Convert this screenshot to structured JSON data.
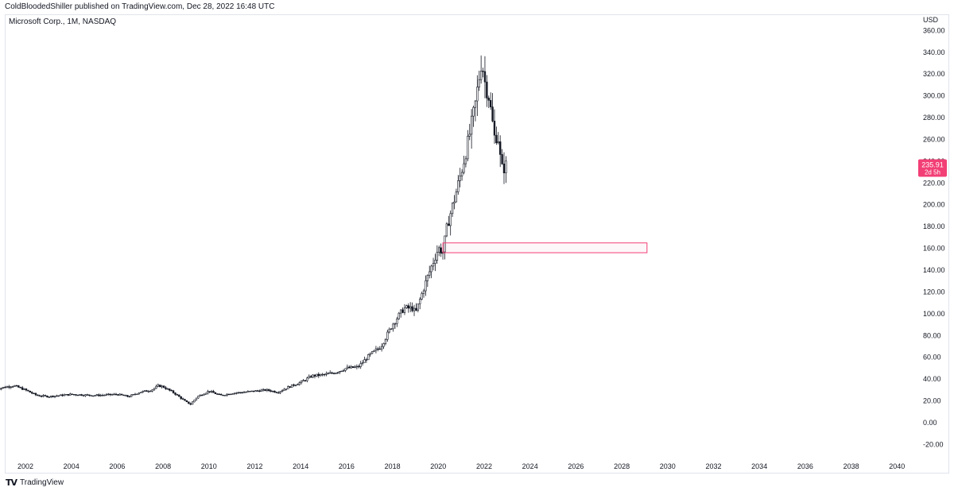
{
  "header": {
    "published_by": "ColdBloodedShiller published on TradingView.com, Dec 28, 2022 16:48 UTC"
  },
  "symbol": {
    "title": "Microsoft Corp., 1M, NASDAQ"
  },
  "price_label": {
    "value": "235.91",
    "countdown": "2d 5h",
    "color": "#f23f75"
  },
  "footer": {
    "brand": "TradingView",
    "brand_icon": "tradingview-logo-icon"
  },
  "chart_data": {
    "type": "candlestick",
    "currency": "USD",
    "interval": "1M",
    "ylim": [
      -28,
      368
    ],
    "xlim": [
      2000.7,
      2040.6
    ],
    "y_ticks": [
      -20,
      0,
      20,
      40,
      60,
      80,
      100,
      120,
      140,
      160,
      180,
      200,
      220,
      240,
      260,
      280,
      300,
      320,
      340,
      360
    ],
    "x_ticks": [
      2002,
      2004,
      2006,
      2008,
      2010,
      2012,
      2014,
      2016,
      2018,
      2020,
      2022,
      2024,
      2026,
      2028,
      2030,
      2032,
      2034,
      2036,
      2038,
      2040
    ],
    "close_anchors": [
      [
        2000.7,
        31
      ],
      [
        2001.2,
        33
      ],
      [
        2001.5,
        34
      ],
      [
        2002.0,
        30
      ],
      [
        2002.5,
        25
      ],
      [
        2003.0,
        24
      ],
      [
        2004.0,
        26
      ],
      [
        2005.0,
        25
      ],
      [
        2006.0,
        26
      ],
      [
        2006.5,
        24
      ],
      [
        2007.0,
        28
      ],
      [
        2007.5,
        30
      ],
      [
        2007.8,
        34
      ],
      [
        2008.0,
        33
      ],
      [
        2008.5,
        27
      ],
      [
        2009.0,
        19
      ],
      [
        2009.2,
        17
      ],
      [
        2009.5,
        24
      ],
      [
        2010.0,
        29
      ],
      [
        2010.5,
        25
      ],
      [
        2011.0,
        27
      ],
      [
        2012.0,
        29
      ],
      [
        2012.5,
        30
      ],
      [
        2013.0,
        28
      ],
      [
        2013.5,
        33
      ],
      [
        2014.0,
        37
      ],
      [
        2014.5,
        43
      ],
      [
        2015.0,
        44
      ],
      [
        2015.5,
        46
      ],
      [
        2016.0,
        50
      ],
      [
        2016.5,
        51
      ],
      [
        2017.0,
        62
      ],
      [
        2017.5,
        70
      ],
      [
        2018.0,
        90
      ],
      [
        2018.5,
        105
      ],
      [
        2018.9,
        105
      ],
      [
        2019.0,
        100
      ],
      [
        2019.5,
        132
      ],
      [
        2020.0,
        160
      ],
      [
        2020.2,
        157
      ],
      [
        2020.4,
        182
      ],
      [
        2020.7,
        205
      ],
      [
        2021.0,
        230
      ],
      [
        2021.3,
        258
      ],
      [
        2021.6,
        290
      ],
      [
        2021.9,
        335
      ],
      [
        2022.0,
        315
      ],
      [
        2022.2,
        300
      ],
      [
        2022.45,
        262
      ],
      [
        2022.6,
        265
      ],
      [
        2022.75,
        232
      ],
      [
        2022.95,
        236
      ]
    ],
    "last_price": 235.91,
    "rectangle": {
      "x_start": 2020.2,
      "x_end": 2029.1,
      "y_top": 165,
      "y_bottom": 156,
      "color": "#f23f75"
    }
  }
}
